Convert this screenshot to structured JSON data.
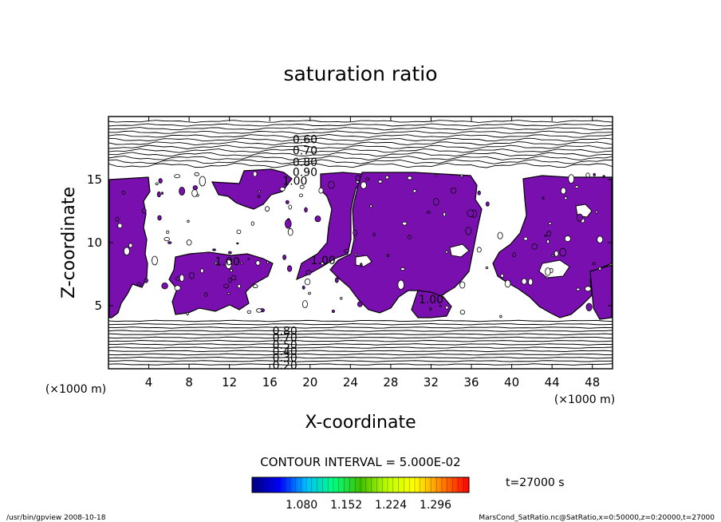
{
  "chart_data": {
    "type": "heatmap",
    "title": "saturation ratio",
    "xlabel": "X-coordinate",
    "ylabel": "Z-coordinate",
    "x_unit_left": "(×1000 m)",
    "x_unit_right": "(×1000 m)",
    "xlim": [
      0,
      50
    ],
    "ylim": [
      0,
      20
    ],
    "x_ticks": [
      4,
      8,
      12,
      16,
      20,
      24,
      28,
      32,
      36,
      40,
      44,
      48
    ],
    "y_ticks": [
      5,
      10,
      15
    ],
    "fill_color": "#7a0fb0",
    "fill_threshold": 1.0,
    "upper_contour_labels": [
      {
        "text": "0.60",
        "x": 19.5,
        "z": 18.2
      },
      {
        "text": "0.70",
        "x": 19.5,
        "z": 17.3
      },
      {
        "text": "0.80",
        "x": 19.5,
        "z": 16.4
      },
      {
        "text": "0.90",
        "x": 19.5,
        "z": 15.6
      },
      {
        "text": "1.00",
        "x": 18.5,
        "z": 14.9
      }
    ],
    "inner_contour_labels": [
      {
        "text": "1.00",
        "x": 11.8,
        "z": 8.5
      },
      {
        "text": "1.00",
        "x": 21.3,
        "z": 8.6
      },
      {
        "text": "1.00",
        "x": 32.0,
        "z": 5.5
      }
    ],
    "lower_contour_labels": [
      {
        "text": "0.80",
        "x": 17.5,
        "z": 3.0
      },
      {
        "text": "0.70",
        "x": 17.5,
        "z": 2.5
      },
      {
        "text": "0.50",
        "x": 17.5,
        "z": 1.9
      },
      {
        "text": "0.40",
        "x": 17.5,
        "z": 1.4
      },
      {
        "text": "0.30",
        "x": 17.5,
        "z": 0.9
      },
      {
        "text": "0.20",
        "x": 17.5,
        "z": 0.3
      }
    ],
    "contour_interval": "CONTOUR INTERVAL = 5.000E-02",
    "colorbar": {
      "min": 1.0,
      "max": 1.35,
      "tick_labels": [
        "1.080",
        "1.152",
        "1.224",
        "1.296"
      ],
      "tick_values": [
        1.08,
        1.152,
        1.224,
        1.296
      ],
      "colors": [
        "#000080",
        "#0000ff",
        "#00c0ff",
        "#00ff80",
        "#40c000",
        "#c0ff00",
        "#ffff00",
        "#ff8000",
        "#ff0000"
      ]
    },
    "time_label": "t=27000 s"
  },
  "footer": {
    "left": "/usr/bin/gpview   2008-10-18",
    "right": "MarsCond_SatRatio.nc@SatRatio,x=0:50000,z=0:20000,t=27000"
  }
}
